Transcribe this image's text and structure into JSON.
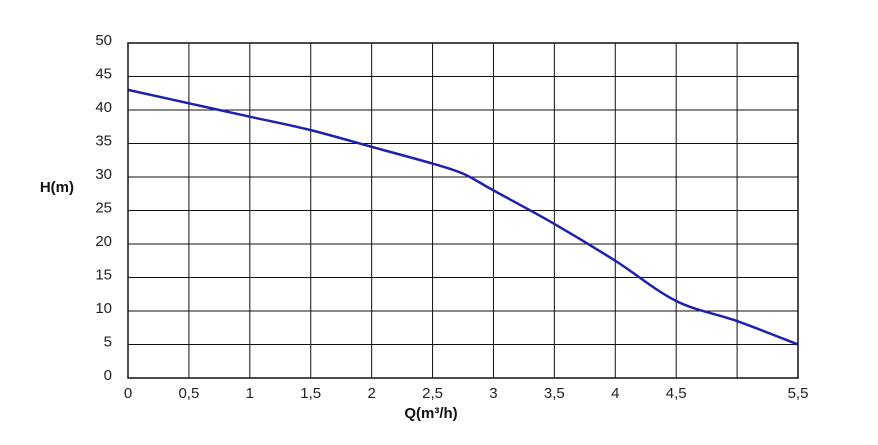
{
  "chart_data": {
    "type": "line",
    "title": "",
    "xlabel": "Q(m³/h)",
    "ylabel": "H(m)",
    "xlim": [
      0,
      5.5
    ],
    "ylim": [
      0,
      50
    ],
    "x_ticks": [
      "0",
      "0,5",
      "1",
      "1,5",
      "2",
      "2,5",
      "3",
      "3,5",
      "4",
      "4,5",
      "5,5"
    ],
    "x_tick_values": [
      0,
      0.5,
      1,
      1.5,
      2,
      2.5,
      3,
      3.5,
      4,
      4.5,
      5.5
    ],
    "y_ticks": [
      "0",
      "5",
      "10",
      "15",
      "20",
      "25",
      "30",
      "35",
      "40",
      "45",
      "50"
    ],
    "y_tick_values": [
      0,
      5,
      10,
      15,
      20,
      25,
      30,
      35,
      40,
      45,
      50
    ],
    "x_grid_values": [
      0,
      0.5,
      1,
      1.5,
      2,
      2.5,
      3,
      3.5,
      4,
      4.5,
      5,
      5.5
    ],
    "y_grid_values": [
      0,
      5,
      10,
      15,
      20,
      25,
      30,
      35,
      40,
      45,
      50
    ],
    "grid": true,
    "series": [
      {
        "color": "#1f1fb0",
        "x": [
          0,
          0.5,
          1,
          1.5,
          2,
          2.5,
          2.75,
          3,
          3.5,
          4,
          4.5,
          5,
          5.5
        ],
        "y": [
          43,
          41,
          39,
          37,
          34.5,
          32,
          30.5,
          28,
          23,
          17.5,
          11.5,
          8.5,
          5
        ]
      }
    ]
  }
}
